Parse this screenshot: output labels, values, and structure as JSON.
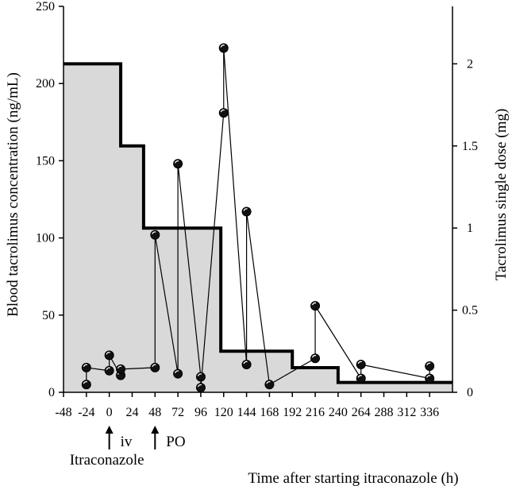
{
  "chart_data": {
    "type": "line",
    "title": "",
    "xlabel": "Time after starting itraconazole (h)",
    "ylabel_left": "Blood tacrolimus concentration (ng/mL)",
    "ylabel_right": "Tacrolimus single dose (mg)",
    "xlim": [
      -48,
      360
    ],
    "ylim_left": [
      0,
      250
    ],
    "ylim_right": [
      0,
      2.35
    ],
    "x_ticks": [
      -48,
      -24,
      0,
      24,
      48,
      72,
      96,
      120,
      144,
      168,
      192,
      216,
      240,
      264,
      288,
      312,
      336
    ],
    "y_ticks_left": [
      0,
      50,
      100,
      150,
      200,
      250
    ],
    "y_ticks_right": [
      0,
      0.5,
      1,
      1.5,
      2
    ],
    "y_tick_labels_right": [
      "0",
      "0.5",
      "1",
      "1.5",
      "2"
    ],
    "grid": false,
    "series": [
      {
        "kind": "line",
        "axis": "left",
        "x": [
          -24,
          -24,
          0,
          0,
          12,
          12,
          48,
          48,
          72,
          72,
          96,
          96,
          120,
          120,
          144,
          144,
          168,
          216,
          216,
          264,
          264,
          336,
          336
        ],
        "y": [
          5,
          16,
          14,
          24,
          11,
          15,
          16,
          102,
          12,
          148,
          10,
          3,
          181,
          223,
          18,
          117,
          5,
          22,
          56,
          9,
          18,
          9,
          17
        ]
      },
      {
        "kind": "step-area",
        "axis": "right",
        "x": [
          -48,
          12,
          12,
          36,
          36,
          72,
          72,
          117,
          117,
          192,
          192,
          240,
          240,
          360
        ],
        "y": [
          2.0,
          2.0,
          1.5,
          1.5,
          1.0,
          1.0,
          1.0,
          1.0,
          0.25,
          0.25,
          0.15,
          0.15,
          0.06,
          0.06
        ],
        "fill": "#d9d9d9"
      }
    ],
    "annotations": [
      {
        "x": 0,
        "text": "iv",
        "marker": "arrow"
      },
      {
        "x": 48,
        "text": "PO",
        "marker": "arrow"
      },
      {
        "x": 0,
        "text": "Itraconazole"
      }
    ]
  },
  "colors": {
    "line": "#000000",
    "fill": "#d9d9d9",
    "marker": "#111111"
  }
}
